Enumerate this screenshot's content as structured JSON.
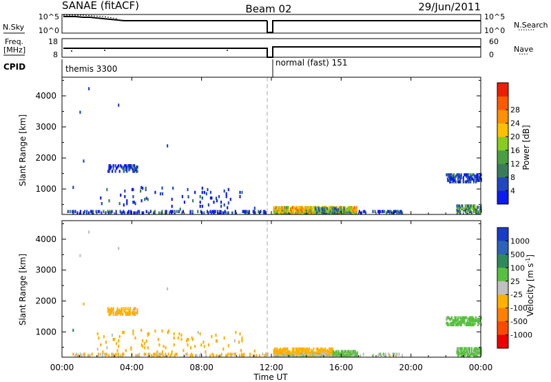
{
  "header": {
    "title": "SANAE (fitACF)",
    "beam": "Beam 02",
    "date": "29/Jun/2011"
  },
  "noise_panel": {
    "left_label": "N.Sky",
    "right_label": "N.Search",
    "left_ticks": [
      "10^5",
      "10^0"
    ],
    "right_ticks": [
      "10^5",
      "10^0"
    ]
  },
  "freq_panel": {
    "left_label_1": "Freq.",
    "left_label_2": "[MHz]",
    "right_label": "Nave",
    "left_ticks": [
      "18",
      "8"
    ],
    "right_ticks": [
      "60",
      "0"
    ]
  },
  "cpid_panel": {
    "label": "CPID",
    "segments": [
      {
        "text": "themis 3300"
      },
      {
        "text": "normal (fast) 151"
      }
    ]
  },
  "axes": {
    "ylabel": "Slant Range [km]",
    "xlabel": "Time UT",
    "x_ticks": [
      "00:00",
      "04:00",
      "08:00",
      "12:00",
      "16:00",
      "20:00",
      "00:00"
    ],
    "y_ticks": [
      "1000",
      "2000",
      "3000",
      "4000"
    ]
  },
  "power_scale": {
    "label": "Power [dB]",
    "tick_labels": [
      "4",
      "8",
      "12",
      "16",
      "20",
      "24",
      "28"
    ],
    "colors": [
      "#0a1cf0",
      "#2046c0",
      "#3a7c5a",
      "#4aa040",
      "#88cc22",
      "#ffc000",
      "#ff9000",
      "#ff5a00",
      "#ee1e00"
    ]
  },
  "velocity_scale": {
    "label": "Velocity [m s^-1]",
    "tick_labels": [
      "1000",
      "500",
      "100",
      "25",
      "-25",
      "-100",
      "-500",
      "-1000"
    ],
    "colors": [
      "#1a3cc8",
      "#2c64b8",
      "#2e8a5a",
      "#58c040",
      "#c0c0c0",
      "#ffb000",
      "#ff8000",
      "#ff4a00",
      "#ee0000"
    ]
  },
  "chart_data": {
    "type": "heatmap",
    "title": "SANAE (fitACF)",
    "xlabel": "Time UT",
    "ylabel": "Slant Range [km]",
    "xlim_hours": [
      0,
      24
    ],
    "ylim_km": [
      180,
      4600
    ],
    "mode_change_hour": 12,
    "power_clusters": [
      {
        "t0": 0.3,
        "t1": 11.8,
        "r0": 180,
        "r1": 240,
        "value": 4,
        "density": 0.35
      },
      {
        "t0": 12.1,
        "t1": 16.9,
        "r0": 180,
        "r1": 260,
        "value": 18,
        "density": 0.95
      },
      {
        "t0": 12.1,
        "t1": 16.9,
        "r0": 260,
        "r1": 380,
        "value": 22,
        "density": 0.6
      },
      {
        "t0": 14.5,
        "t1": 16.5,
        "r0": 180,
        "r1": 340,
        "value": 12,
        "density": 0.6
      },
      {
        "t0": 17.0,
        "t1": 19.5,
        "r0": 180,
        "r1": 260,
        "value": 4,
        "density": 0.35
      },
      {
        "t0": 22.6,
        "t1": 24.0,
        "r0": 180,
        "r1": 420,
        "value": 12,
        "density": 0.55
      },
      {
        "t0": 2.6,
        "t1": 4.3,
        "r0": 1520,
        "r1": 1720,
        "value": 4,
        "density": 0.4
      },
      {
        "t0": 22.0,
        "t1": 24.0,
        "r0": 1180,
        "r1": 1420,
        "value": 4,
        "density": 0.5
      },
      {
        "t0": 2.0,
        "t1": 10.5,
        "r0": 300,
        "r1": 1000,
        "value": 4,
        "density": 0.03
      }
    ],
    "power_points": [
      [
        0.6,
        1000,
        4
      ],
      [
        1.0,
        3420,
        4
      ],
      [
        1.5,
        4180,
        4
      ],
      [
        3.2,
        3650,
        4
      ],
      [
        1.2,
        1850,
        4
      ],
      [
        6.0,
        2340,
        4
      ],
      [
        4.5,
        1000,
        4
      ],
      [
        4.8,
        650,
        4
      ],
      [
        5.7,
        980,
        4
      ],
      [
        7.2,
        700,
        4
      ],
      [
        8.8,
        650,
        4
      ],
      [
        9.5,
        500,
        4
      ],
      [
        11.0,
        330,
        4
      ]
    ],
    "velocity_clusters": [
      {
        "t0": 0.3,
        "t1": 11.8,
        "r0": 180,
        "r1": 240,
        "value": -40,
        "density": 0.3
      },
      {
        "t0": 12.1,
        "t1": 16.9,
        "r0": 180,
        "r1": 300,
        "value": 0,
        "density": 0.95
      },
      {
        "t0": 12.1,
        "t1": 15.5,
        "r0": 260,
        "r1": 400,
        "value": -60,
        "density": 0.55
      },
      {
        "t0": 15.5,
        "t1": 16.9,
        "r0": 180,
        "r1": 350,
        "value": 60,
        "density": 0.55
      },
      {
        "t0": 17.0,
        "t1": 19.5,
        "r0": 180,
        "r1": 260,
        "value": 0,
        "density": 0.25
      },
      {
        "t0": 22.6,
        "t1": 24.0,
        "r0": 180,
        "r1": 420,
        "value": 60,
        "density": 0.55
      },
      {
        "t0": 2.6,
        "t1": 4.3,
        "r0": 1520,
        "r1": 1720,
        "value": -60,
        "density": 0.4
      },
      {
        "t0": 22.0,
        "t1": 24.0,
        "r0": 1180,
        "r1": 1420,
        "value": 60,
        "density": 0.5
      },
      {
        "t0": 2.0,
        "t1": 10.5,
        "r0": 300,
        "r1": 1000,
        "value": -60,
        "density": 0.03
      }
    ],
    "velocity_points": [
      [
        0.6,
        1000,
        300
      ],
      [
        1.0,
        3420,
        0
      ],
      [
        1.5,
        4180,
        0
      ],
      [
        3.2,
        3650,
        0
      ],
      [
        1.2,
        1850,
        -60
      ],
      [
        6.0,
        2340,
        0
      ],
      [
        4.5,
        1000,
        -60
      ],
      [
        4.8,
        650,
        -60
      ],
      [
        5.7,
        980,
        -60
      ],
      [
        7.2,
        700,
        -60
      ],
      [
        8.8,
        650,
        -60
      ],
      [
        9.5,
        500,
        -60
      ],
      [
        11.0,
        330,
        -60
      ]
    ]
  }
}
